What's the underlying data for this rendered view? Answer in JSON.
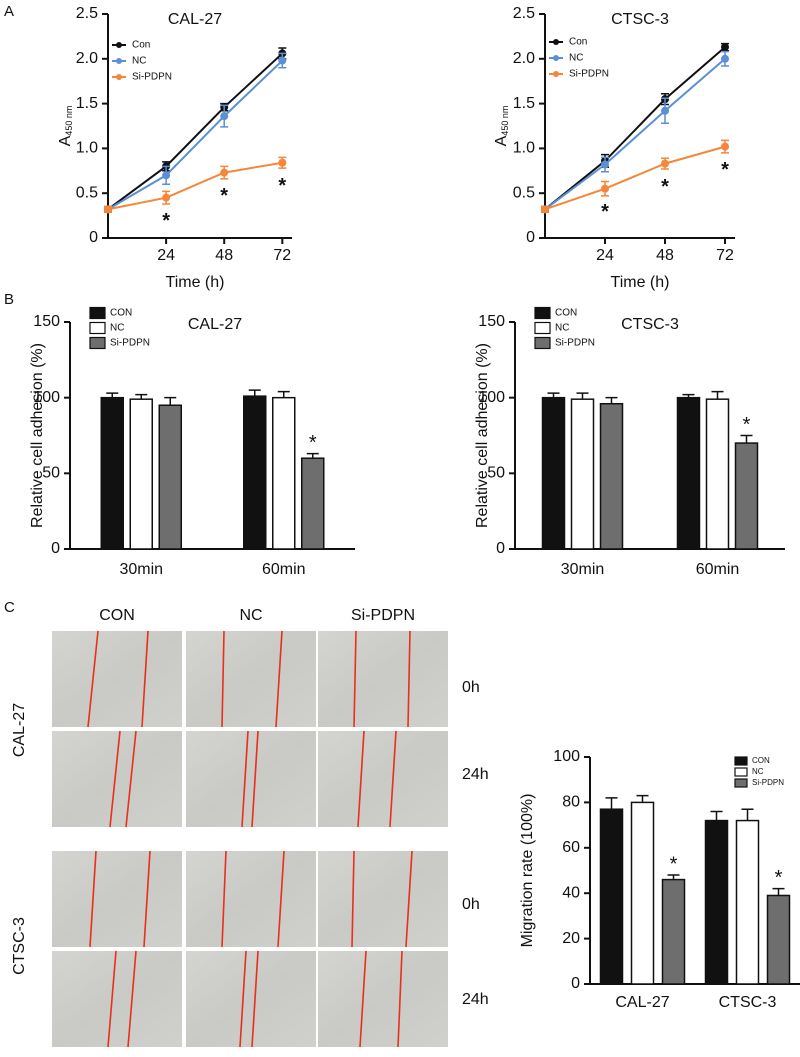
{
  "panel_labels": [
    "A",
    "B",
    "C"
  ],
  "image_grid": {
    "columns": [
      "CON",
      "NC",
      "Si-PDPN"
    ],
    "cell_lines": [
      "CAL-27",
      "CTSC-3"
    ],
    "times": [
      "0h",
      "24h"
    ]
  },
  "chart_data": [
    {
      "type": "line",
      "title": "CAL-27",
      "xlabel": "Time (h)",
      "ylabel": "A",
      "ylabel_subscript": "450 nm",
      "x": [
        0,
        24,
        48,
        72
      ],
      "xlim": [
        0,
        76
      ],
      "xticks": [
        24,
        48,
        72
      ],
      "ylim": [
        0,
        2.5
      ],
      "yticks": [
        0,
        0.5,
        {
          "value": 1,
          "label": "1.0"
        },
        1.5,
        {
          "value": 2,
          "label": "2.0"
        },
        2.5
      ],
      "series": [
        {
          "name": "Con",
          "color": "#111111",
          "values": [
            0.32,
            0.8,
            1.46,
            2.06
          ],
          "errors": [
            0.03,
            0.05,
            0.04,
            0.06
          ]
        },
        {
          "name": "NC",
          "color": "#5b8fd6",
          "values": [
            0.32,
            0.7,
            1.36,
            1.98
          ],
          "errors": [
            0.03,
            0.1,
            0.12,
            0.08
          ]
        },
        {
          "name": "Si-PDPN",
          "color": "#f5863a",
          "values": [
            0.32,
            0.45,
            0.73,
            0.84
          ],
          "errors": [
            0.03,
            0.07,
            0.07,
            0.06
          ],
          "annotations": [
            {
              "text": "*",
              "x": 24
            },
            {
              "text": "*",
              "x": 48
            },
            {
              "text": "*",
              "x": 72
            }
          ]
        }
      ]
    },
    {
      "type": "line",
      "title": "CTSC-3",
      "xlabel": "Time (h)",
      "ylabel": "A",
      "ylabel_subscript": "450 nm",
      "x": [
        0,
        24,
        48,
        72
      ],
      "xlim": [
        0,
        76
      ],
      "xticks": [
        24,
        48,
        72
      ],
      "ylim": [
        0,
        2.5
      ],
      "yticks": [
        0,
        0.5,
        {
          "value": 1,
          "label": "1.0"
        },
        1.5,
        {
          "value": 2,
          "label": "2.0"
        },
        2.5
      ],
      "series": [
        {
          "name": "Con",
          "color": "#111111",
          "values": [
            0.32,
            0.86,
            1.55,
            2.13
          ],
          "errors": [
            0.03,
            0.07,
            0.06,
            0.04
          ]
        },
        {
          "name": "NC",
          "color": "#5b8fd6",
          "values": [
            0.32,
            0.82,
            1.42,
            2.0
          ],
          "errors": [
            0.03,
            0.08,
            0.14,
            0.08
          ]
        },
        {
          "name": "Si-PDPN",
          "color": "#f5863a",
          "values": [
            0.32,
            0.55,
            0.83,
            1.02
          ],
          "errors": [
            0.03,
            0.08,
            0.06,
            0.07
          ],
          "annotations": [
            {
              "text": "*",
              "x": 24
            },
            {
              "text": "*",
              "x": 48
            },
            {
              "text": "*",
              "x": 72
            }
          ]
        }
      ]
    },
    {
      "type": "bar",
      "title": "CAL-27",
      "ylabel": "Relative cell adhesion (%)",
      "categories": [
        "30min",
        "60min"
      ],
      "ylim": [
        0,
        150
      ],
      "yticks": [
        0,
        50,
        100,
        150
      ],
      "series": [
        {
          "name": "CON",
          "color": "#111111",
          "values": [
            100,
            101
          ],
          "errors": [
            3,
            4
          ]
        },
        {
          "name": "NC",
          "color": "#ffffff",
          "values": [
            99,
            100
          ],
          "errors": [
            3,
            4
          ]
        },
        {
          "name": "Si-PDPN",
          "color": "#6e6e6e",
          "values": [
            95,
            60
          ],
          "errors": [
            5,
            3
          ],
          "annotations": [
            {
              "text": "*",
              "category": "60min"
            }
          ]
        }
      ]
    },
    {
      "type": "bar",
      "title": "CTSC-3",
      "ylabel": "Relative cell adhesion (%)",
      "categories": [
        "30min",
        "60min"
      ],
      "ylim": [
        0,
        150
      ],
      "yticks": [
        0,
        50,
        100,
        150
      ],
      "series": [
        {
          "name": "CON",
          "color": "#111111",
          "values": [
            100,
            100
          ],
          "errors": [
            3,
            2
          ]
        },
        {
          "name": "NC",
          "color": "#ffffff",
          "values": [
            99,
            99
          ],
          "errors": [
            4,
            5
          ]
        },
        {
          "name": "Si-PDPN",
          "color": "#6e6e6e",
          "values": [
            96,
            70
          ],
          "errors": [
            4,
            5
          ],
          "annotations": [
            {
              "text": "*",
              "category": "60min"
            }
          ]
        }
      ]
    },
    {
      "type": "bar",
      "ylabel": "Migration rate (100%)",
      "categories": [
        "CAL-27",
        "CTSC-3"
      ],
      "ylim": [
        0,
        100
      ],
      "yticks": [
        0,
        20,
        40,
        60,
        80,
        100
      ],
      "series": [
        {
          "name": "CON",
          "color": "#111111",
          "values": [
            77,
            72
          ],
          "errors": [
            5,
            4
          ]
        },
        {
          "name": "NC",
          "color": "#ffffff",
          "values": [
            80,
            72
          ],
          "errors": [
            3,
            5
          ]
        },
        {
          "name": "Si-PDPN",
          "color": "#6e6e6e",
          "values": [
            46,
            39
          ],
          "errors": [
            2,
            3
          ],
          "annotations": [
            {
              "text": "*",
              "category": "CAL-27"
            },
            {
              "text": "*",
              "category": "CTSC-3"
            }
          ]
        }
      ]
    }
  ]
}
